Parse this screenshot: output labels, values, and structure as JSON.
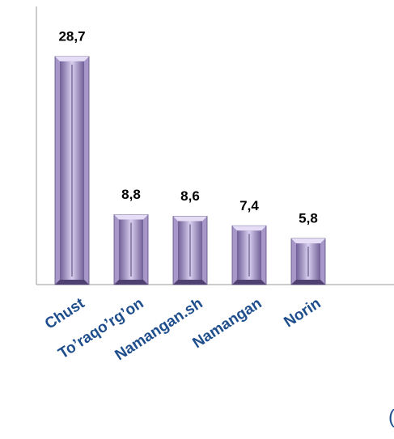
{
  "chart_data": {
    "type": "bar",
    "categories": [
      "Chust",
      "To’raqo’rg’on",
      "Namangan.sh",
      "Namangan",
      "Norin"
    ],
    "values": [
      28.7,
      8.8,
      8.6,
      7.4,
      5.8
    ],
    "value_labels": [
      "28,7",
      "8,8",
      "8,6",
      "7,4",
      "5,8"
    ],
    "color": "#a797c8",
    "ylim": [
      0,
      35
    ],
    "annotation": "("
  }
}
